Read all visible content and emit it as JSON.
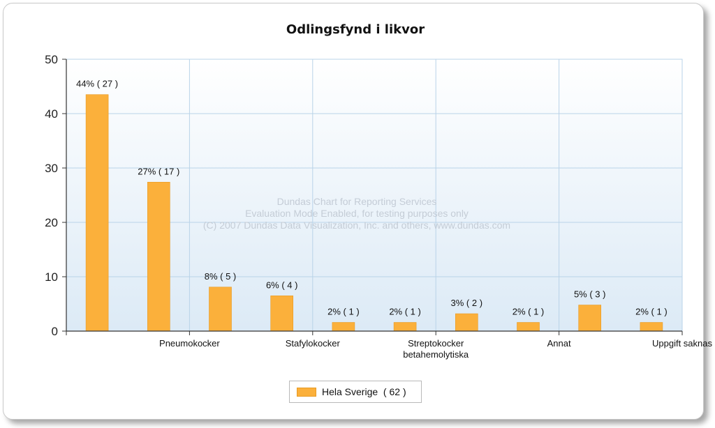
{
  "watermark": [
    "Dundas Chart for Reporting Services",
    "Evaluation Mode Enabled, for testing purposes only",
    "(C) 2007 Dundas Data Visualization, Inc. and others, www.dundas.com"
  ],
  "colors": {
    "bar": "#fbb03b",
    "grid": "#b9d3e8",
    "plot_top": "#ffffff",
    "plot_bottom": "#dceaf6"
  },
  "chart_data": {
    "type": "bar",
    "title": "Odlingsfynd i likvor",
    "xlabel": "",
    "ylabel": "",
    "ylim": [
      0,
      50
    ],
    "yticks": [
      0,
      10,
      20,
      30,
      40,
      50
    ],
    "grid": true,
    "legend_position": "bottom-center",
    "category_labels": [
      {
        "after_bar": 1,
        "lines": [
          "Pneumokocker"
        ]
      },
      {
        "after_bar": 3,
        "lines": [
          "Stafylokocker"
        ]
      },
      {
        "after_bar": 5,
        "lines": [
          "Streptokocker",
          "betahemolytiska"
        ]
      },
      {
        "after_bar": 7,
        "lines": [
          "Annat"
        ]
      },
      {
        "after_bar": 9,
        "lines": [
          "Uppgift saknas"
        ]
      }
    ],
    "series": [
      {
        "name": "Hela Sverige  ( 62 )",
        "values": [
          43.5,
          27.4,
          8.1,
          6.5,
          1.6,
          1.6,
          3.2,
          1.6,
          4.8,
          1.6
        ],
        "labels": [
          "44% ( 27 )",
          "27% ( 17 )",
          "8% ( 5 )",
          "6% ( 4 )",
          "2% ( 1 )",
          "2% ( 1 )",
          "3% ( 2 )",
          "2% ( 1 )",
          "5% ( 3 )",
          "2% ( 1 )"
        ]
      }
    ]
  }
}
